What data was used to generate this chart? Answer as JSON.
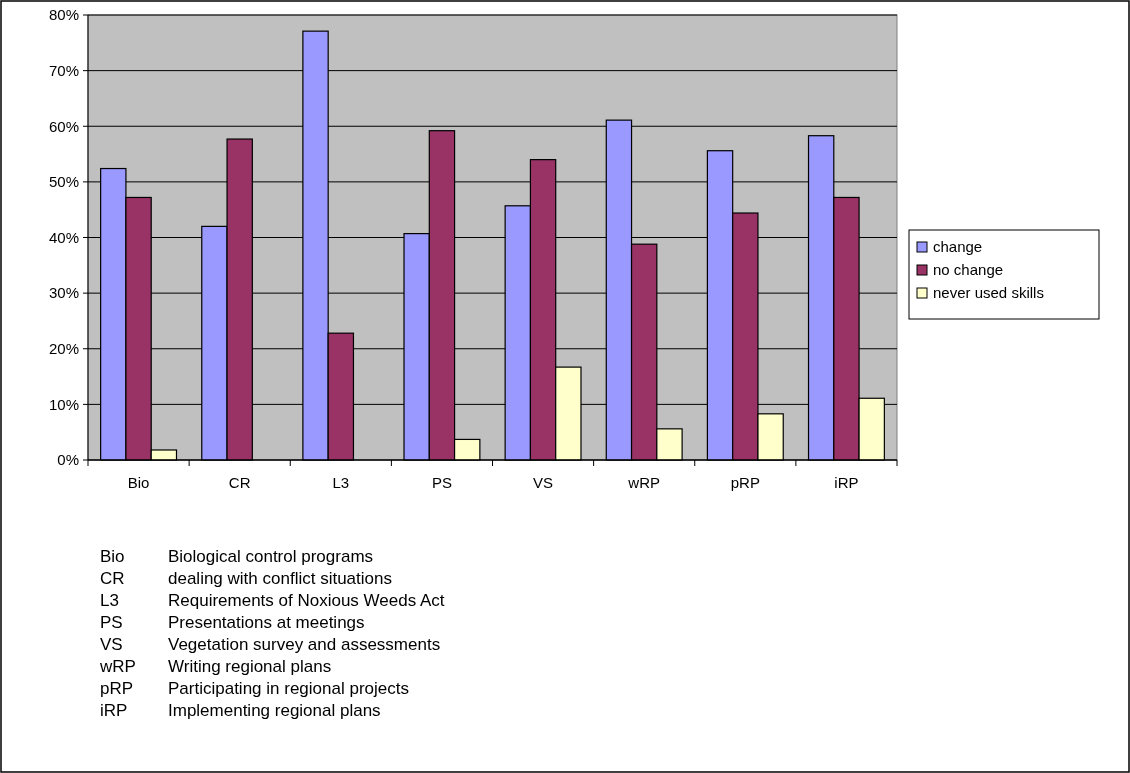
{
  "chart_data": {
    "type": "bar",
    "categories": [
      "Bio",
      "CR",
      "L3",
      "PS",
      "VS",
      "wRP",
      "pRP",
      "iRP"
    ],
    "series": [
      {
        "name": "change",
        "color": "#9999ff",
        "values": [
          52.4,
          42.0,
          77.1,
          40.7,
          45.7,
          61.1,
          55.6,
          58.3
        ]
      },
      {
        "name": "no change",
        "color": "#993366",
        "values": [
          47.2,
          57.7,
          22.8,
          59.2,
          54.0,
          38.8,
          44.4,
          47.2
        ]
      },
      {
        "name": "never used skills",
        "color": "#ffffcc",
        "values": [
          1.8,
          0,
          0,
          3.7,
          16.7,
          5.6,
          8.3,
          11.1
        ]
      }
    ],
    "ylim": [
      0,
      80
    ],
    "yticks": [
      {
        "value": 0,
        "label": "0%"
      },
      {
        "value": 10,
        "label": "10%"
      },
      {
        "value": 20,
        "label": "20%"
      },
      {
        "value": 30,
        "label": "30%"
      },
      {
        "value": 40,
        "label": "40%"
      },
      {
        "value": 50,
        "label": "50%"
      },
      {
        "value": 60,
        "label": "60%"
      },
      {
        "value": 70,
        "label": "70%"
      },
      {
        "value": 80,
        "label": "80%"
      }
    ],
    "grid": "y",
    "legend": "right",
    "annotations": [
      "Bio\tBiological control programs",
      "CR\tdealing with conflict situations",
      "L3\tRequirements of Noxious Weeds Act",
      "PS\tPresentations at meetings",
      "VS\tVegetation survey and assessments",
      "wRP\tWriting regional plans",
      "pRP\tParticipating in regional projects",
      "iRP\tImplementing regional plans"
    ]
  }
}
